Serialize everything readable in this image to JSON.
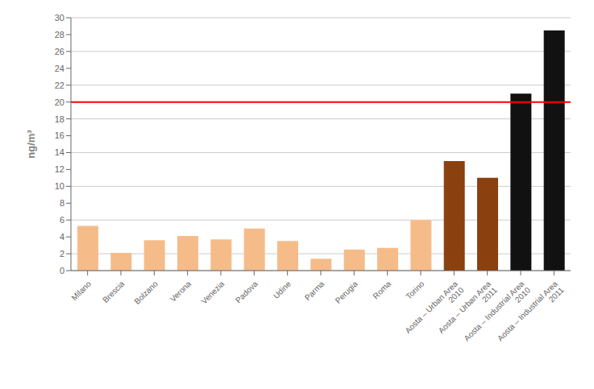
{
  "chart_data": {
    "type": "bar",
    "categories": [
      "Milano",
      "Brescia",
      "Bolzano",
      "Verona",
      "Venezia",
      "Padova",
      "Udine",
      "Parma",
      "Perugia",
      "Roma",
      "Torino",
      "Aosta – Urban Area\n2010",
      "Aosta – Urban Area\n2011",
      "Aosta – Industrial Area\n2010",
      "Aosta – Industrial Area\n2011"
    ],
    "values": [
      5.3,
      2.1,
      3.6,
      4.1,
      3.7,
      5.0,
      3.5,
      1.4,
      2.5,
      2.7,
      6.0,
      13.0,
      11.0,
      21.0,
      28.5
    ],
    "colors": [
      "#F5BC8A",
      "#F5BC8A",
      "#F5BC8A",
      "#F5BC8A",
      "#F5BC8A",
      "#F5BC8A",
      "#F5BC8A",
      "#F5BC8A",
      "#F5BC8A",
      "#F5BC8A",
      "#F5BC8A",
      "#8B4010",
      "#8B4010",
      "#111111",
      "#111111"
    ],
    "ylabel": "ng/m³",
    "ylim": [
      0,
      30
    ],
    "yticks": [
      0,
      2,
      4,
      6,
      8,
      10,
      12,
      14,
      16,
      18,
      20,
      22,
      24,
      26,
      28,
      30
    ],
    "grid": true,
    "hline": {
      "value": 20,
      "color": "#FF0000"
    }
  }
}
